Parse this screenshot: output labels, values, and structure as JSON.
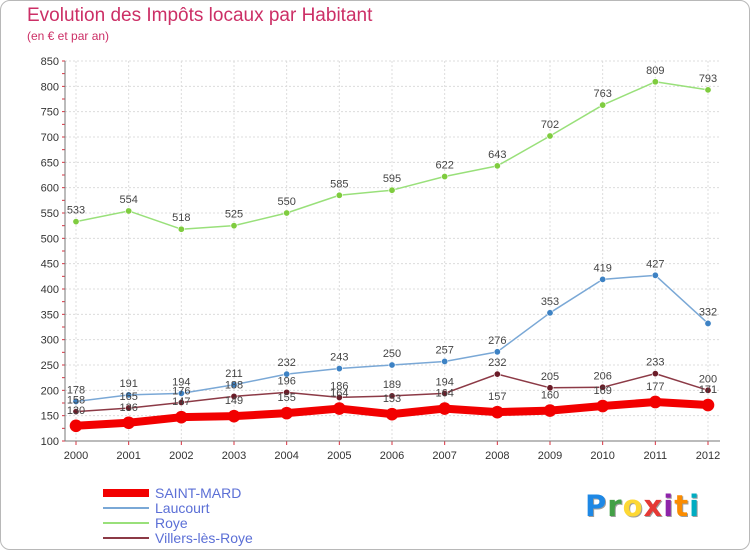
{
  "header": {
    "title": "Evolution des Impôts locaux par Habitant",
    "subtitle": "(en € et par an)"
  },
  "logo": {
    "text": "Proxiti",
    "colors": [
      "#1e88e5",
      "#43a047",
      "#fdd835",
      "#e53935",
      "#8e24aa",
      "#fb8c00",
      "#00acc1"
    ]
  },
  "chart_data": {
    "type": "line",
    "x": [
      "2000",
      "2001",
      "2002",
      "2003",
      "2004",
      "2005",
      "2006",
      "2007",
      "2008",
      "2009",
      "2010",
      "2011",
      "2012"
    ],
    "yticks": [
      100,
      150,
      200,
      250,
      300,
      350,
      400,
      450,
      500,
      550,
      600,
      650,
      700,
      750,
      800,
      850
    ],
    "ylim": [
      100,
      850
    ],
    "grid": true,
    "legend_position": "bottom-left",
    "series": [
      {
        "name": "Roye",
        "color": "#99e07a",
        "marker": "#7fcc3f",
        "width": 1.5,
        "values": [
          533,
          554,
          518,
          525,
          550,
          585,
          595,
          622,
          643,
          702,
          763,
          809,
          793
        ],
        "labels": [
          "533",
          "554",
          "518",
          "525",
          "550",
          "585",
          "595",
          "622",
          "643",
          "702",
          "763",
          "809",
          "793"
        ]
      },
      {
        "name": "Laucourt",
        "color": "#7aa8d6",
        "marker": "#3d82c4",
        "width": 1.5,
        "values": [
          178,
          191,
          194,
          211,
          232,
          243,
          250,
          257,
          276,
          353,
          419,
          427,
          332
        ],
        "labels": [
          "178",
          "191",
          "194",
          "211",
          "232",
          "243",
          "250",
          "257",
          "276",
          "353",
          "419",
          "427",
          "332"
        ]
      },
      {
        "name": "Villers-lès-Roye",
        "color": "#8c3a46",
        "marker": "#6b1c28",
        "width": 1.5,
        "values": [
          158,
          165,
          176,
          188,
          196,
          186,
          189,
          194,
          232,
          205,
          206,
          233,
          200
        ],
        "labels": [
          "158",
          "165",
          "176",
          "188",
          "196",
          "186",
          "189",
          "194",
          "232",
          "205",
          "206",
          "233",
          "200"
        ]
      },
      {
        "name": "SAINT-MARD",
        "color": "#f20000",
        "marker": "#f20000",
        "width": 8,
        "values": [
          130,
          136,
          147,
          149,
          155,
          164,
          153,
          164,
          157,
          160,
          169,
          177,
          171
        ],
        "labels": [
          "130",
          "136",
          "147",
          "149",
          "155",
          "164",
          "153",
          "164",
          "157",
          "160",
          "169",
          "177",
          "171"
        ]
      }
    ],
    "legend_order": [
      "SAINT-MARD",
      "Laucourt",
      "Roye",
      "Villers-lès-Roye"
    ]
  }
}
